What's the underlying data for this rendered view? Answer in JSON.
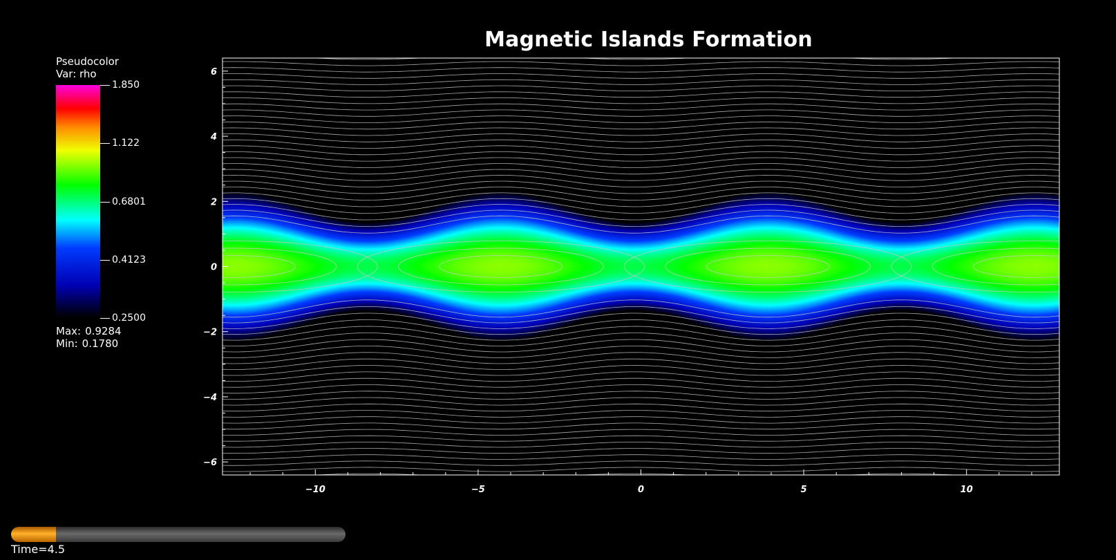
{
  "title": "Magnetic Islands Formation",
  "legend": {
    "plot_type": "Pseudocolor",
    "var_label": "Var: rho",
    "ticks": [
      "1.850",
      "1.122",
      "0.6801",
      "0.4123",
      "0.2500"
    ],
    "max_label": "Max:",
    "max_value": "0.9284",
    "min_label": "Min:",
    "min_value": "0.1780"
  },
  "time_label": "Time=4.5",
  "time_slider_progress": 0.135,
  "chart_data": {
    "type": "heatmap",
    "title": "Magnetic Islands Formation",
    "variable": "rho",
    "color_scale": "log",
    "colorbar_range": [
      0.25,
      1.85
    ],
    "xlim": [
      -12.85,
      12.85
    ],
    "ylim": [
      -6.4,
      6.4
    ],
    "x_ticks": [
      "-10",
      "-5",
      "0",
      "5",
      "10"
    ],
    "y_ticks": [
      "6",
      "4",
      "2",
      "0",
      "-2",
      "-4",
      "-6"
    ],
    "island_centers_x": [
      -4.3,
      3.9
    ],
    "x_points_x": [
      -12.85,
      0.0,
      12.85
    ],
    "peak_value": 0.9284,
    "min_value": 0.178,
    "contour_lines": true,
    "grid": false
  },
  "colors": {
    "background": "#000000",
    "axis": "#ffffff",
    "contour": "#c8c8c8",
    "slider_fill": "#ff9d1a"
  }
}
